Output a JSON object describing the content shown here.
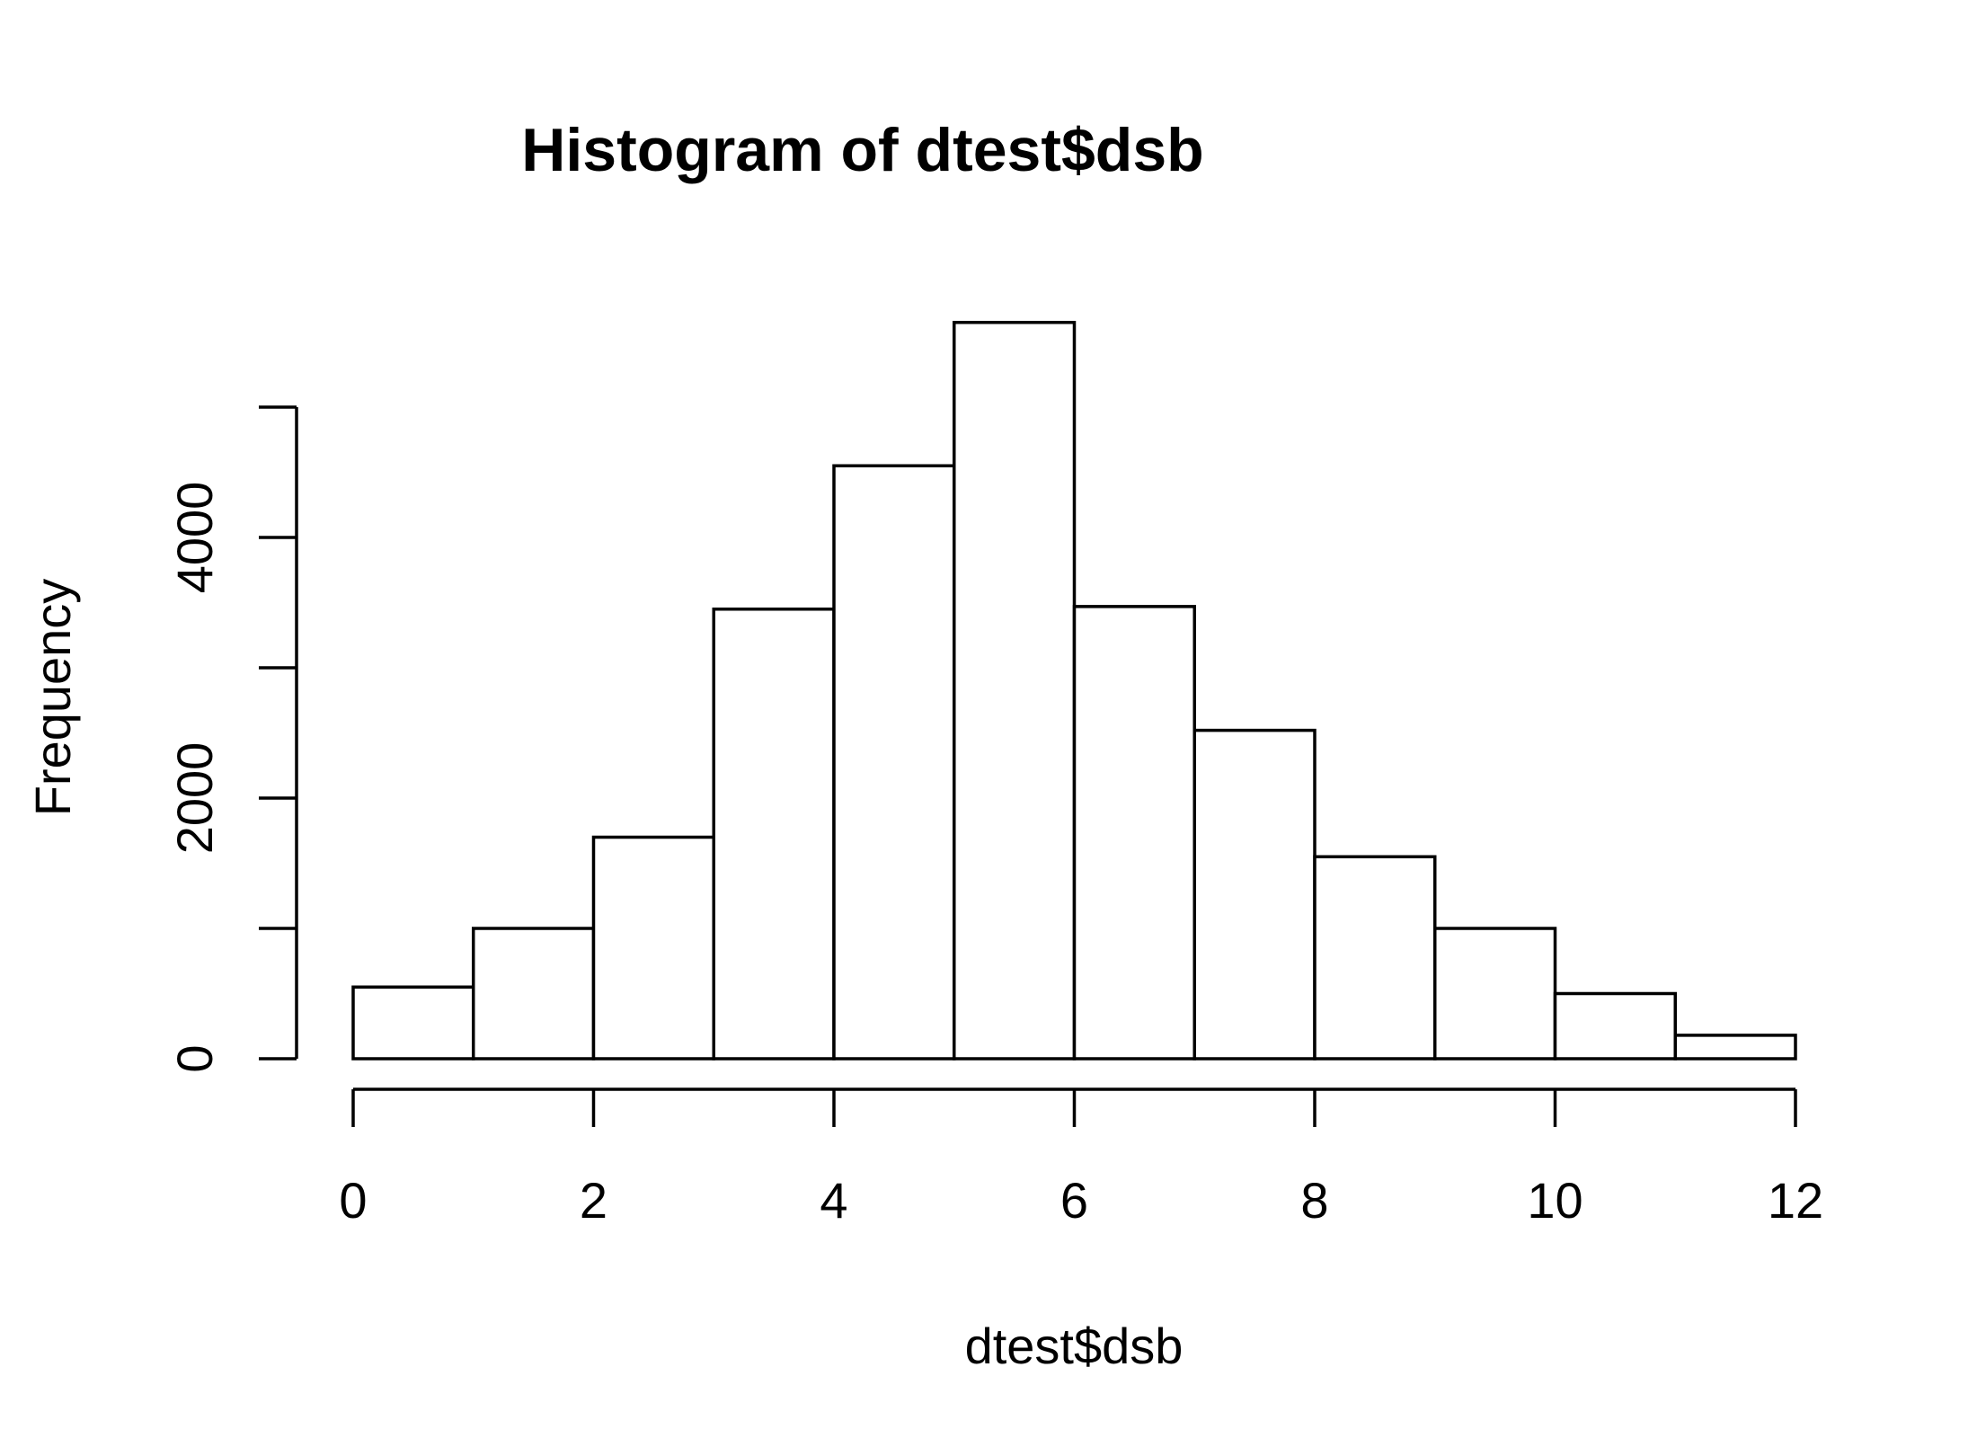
{
  "chart_data": {
    "type": "bar",
    "title": "Histogram of dtest$dsb",
    "xlabel": "dtest$dsb",
    "ylabel": "Frequency",
    "bin_edges": [
      0,
      1,
      2,
      3,
      4,
      5,
      6,
      7,
      8,
      9,
      10,
      11,
      12
    ],
    "values": [
      550,
      1000,
      1700,
      3450,
      4550,
      5650,
      3470,
      2520,
      1550,
      1000,
      500,
      180
    ],
    "xlim": [
      0,
      12
    ],
    "ylim": [
      0,
      5650
    ],
    "x_ticks": [
      0,
      2,
      4,
      6,
      8,
      10,
      12
    ],
    "x_tick_labels": [
      "0",
      "2",
      "4",
      "6",
      "8",
      "10",
      "12"
    ],
    "y_ticks": [
      0,
      1000,
      2000,
      3000,
      4000,
      5000
    ],
    "y_tick_labels": [
      "0",
      "",
      "2000",
      "",
      "4000",
      ""
    ],
    "grid": false,
    "bar_fill": "#ffffff",
    "bar_stroke": "#000000"
  }
}
